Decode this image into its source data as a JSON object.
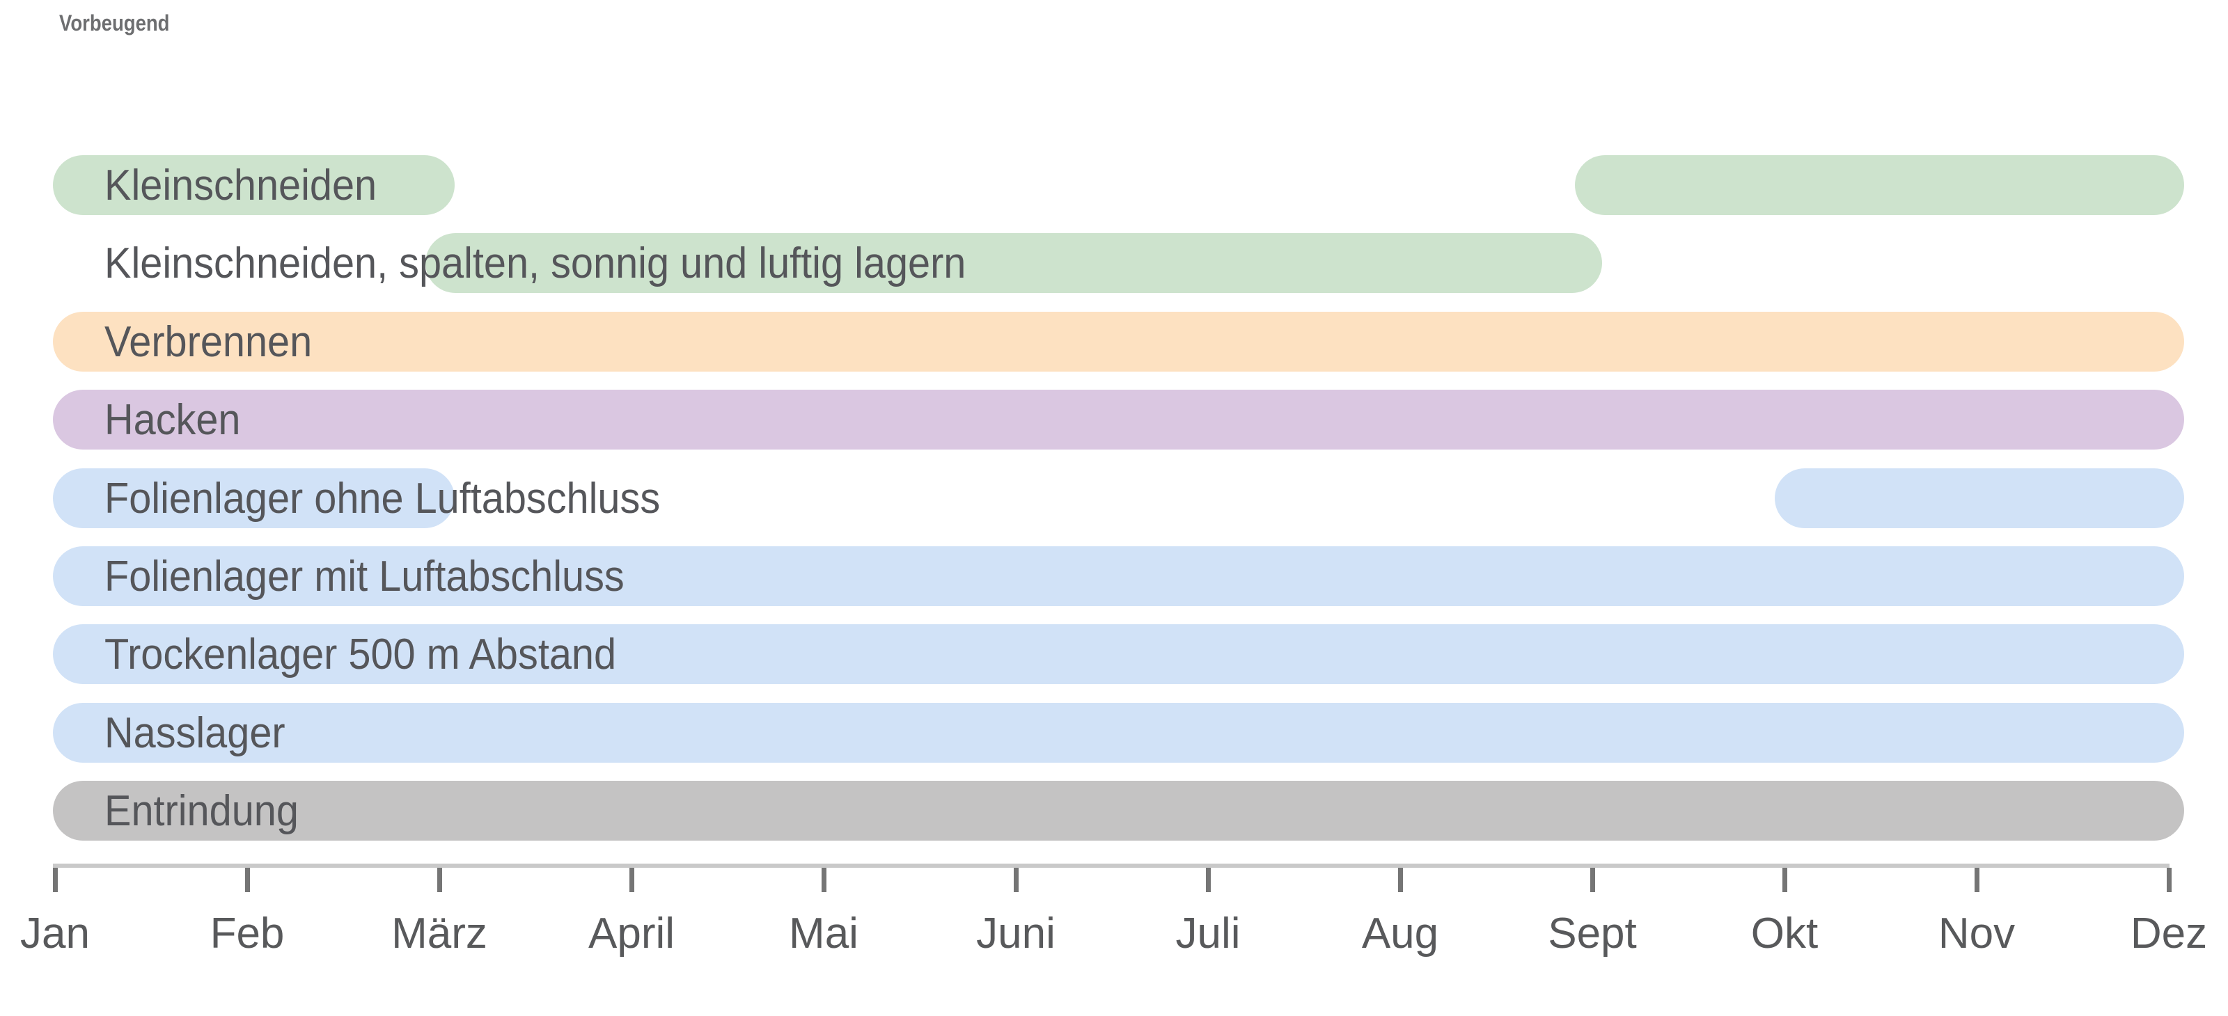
{
  "title": "Vorbeugend",
  "palette": {
    "green": "#cde3cd",
    "orange": "#fde1c1",
    "purple": "#dac7e1",
    "blue": "#d1e2f7",
    "gray": "#c4c3c3"
  },
  "colors": {
    "title_text": "#6d6e70",
    "row_label_text": "#55565a",
    "axis_line": "#c9c9c9",
    "tick_mark": "#757575",
    "tick_label_text": "#58595b",
    "background": "#ffffff"
  },
  "chart_data": {
    "type": "bar",
    "subtype": "gantt-season-calendar",
    "title": "Vorbeugend",
    "xlabel": "",
    "ylabel": "",
    "grid": false,
    "legend_position": "none",
    "x_unit": "month index, 0 = Jan tick, 11 = Dez tick",
    "xlim": [
      0,
      11.08
    ],
    "months": [
      "Jan",
      "Feb",
      "März",
      "April",
      "Mai",
      "Juni",
      "Juli",
      "Aug",
      "Sept",
      "Okt",
      "Nov",
      "Dez"
    ],
    "rows": [
      {
        "label": "Kleinschneiden",
        "color": "green",
        "bars": [
          [
            0,
            2.08
          ],
          [
            7.92,
            11.08
          ]
        ]
      },
      {
        "label": "Kleinschneiden, spalten, sonnig und luftig lagern",
        "color": "green",
        "bars": [
          [
            1.94,
            8.05
          ]
        ]
      },
      {
        "label": "Verbrennen",
        "color": "orange",
        "bars": [
          [
            0,
            11.08
          ]
        ]
      },
      {
        "label": "Hacken",
        "color": "purple",
        "bars": [
          [
            0,
            11.08
          ]
        ]
      },
      {
        "label": "Folienlager ohne Luftabschluss",
        "color": "blue",
        "bars": [
          [
            0,
            2.08
          ],
          [
            8.96,
            11.08
          ]
        ]
      },
      {
        "label": "Folienlager mit Luftabschluss",
        "color": "blue",
        "bars": [
          [
            0,
            11.08
          ]
        ]
      },
      {
        "label": "Trockenlager 500 m Abstand",
        "color": "blue",
        "bars": [
          [
            0,
            11.08
          ]
        ]
      },
      {
        "label": "Nasslager",
        "color": "blue",
        "bars": [
          [
            0,
            11.08
          ]
        ]
      },
      {
        "label": "Entrindung",
        "color": "gray",
        "bars": [
          [
            0,
            11.08
          ]
        ]
      }
    ]
  }
}
